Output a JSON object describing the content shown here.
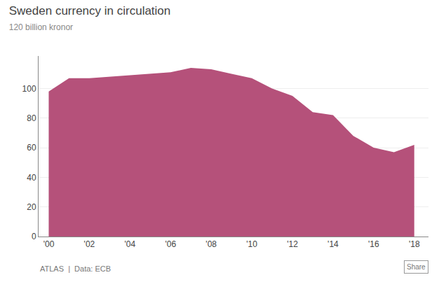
{
  "chart_data": {
    "type": "area",
    "title": "Sweden currency in circulation",
    "subtitle": "120 billion kronor",
    "annotations": [
      "ATLAS  |  Data: ECB",
      "Share"
    ],
    "x": [
      2000,
      2001,
      2002,
      2003,
      2004,
      2005,
      2006,
      2007,
      2008,
      2009,
      2010,
      2011,
      2012,
      2013,
      2014,
      2015,
      2016,
      2017,
      2018
    ],
    "values": [
      98,
      107,
      107,
      108,
      109,
      110,
      111,
      114,
      113,
      110,
      107,
      100,
      95,
      84,
      82,
      68,
      60,
      57,
      62
    ],
    "color": "#b5517a",
    "xlim": [
      1999.5,
      2018.7
    ],
    "xticks": [
      {
        "value": 2000,
        "label": "'00"
      },
      {
        "value": 2002,
        "label": "'02"
      },
      {
        "value": 2004,
        "label": "'04"
      },
      {
        "value": 2006,
        "label": "'06"
      },
      {
        "value": 2008,
        "label": "'08"
      },
      {
        "value": 2010,
        "label": "'10"
      },
      {
        "value": 2012,
        "label": "'12"
      },
      {
        "value": 2014,
        "label": "'14"
      },
      {
        "value": 2016,
        "label": "'16"
      },
      {
        "value": 2018,
        "label": "'18"
      }
    ],
    "ylim": [
      0,
      122
    ],
    "yticks": [
      0,
      20,
      40,
      60,
      80,
      100
    ],
    "grid": true
  }
}
